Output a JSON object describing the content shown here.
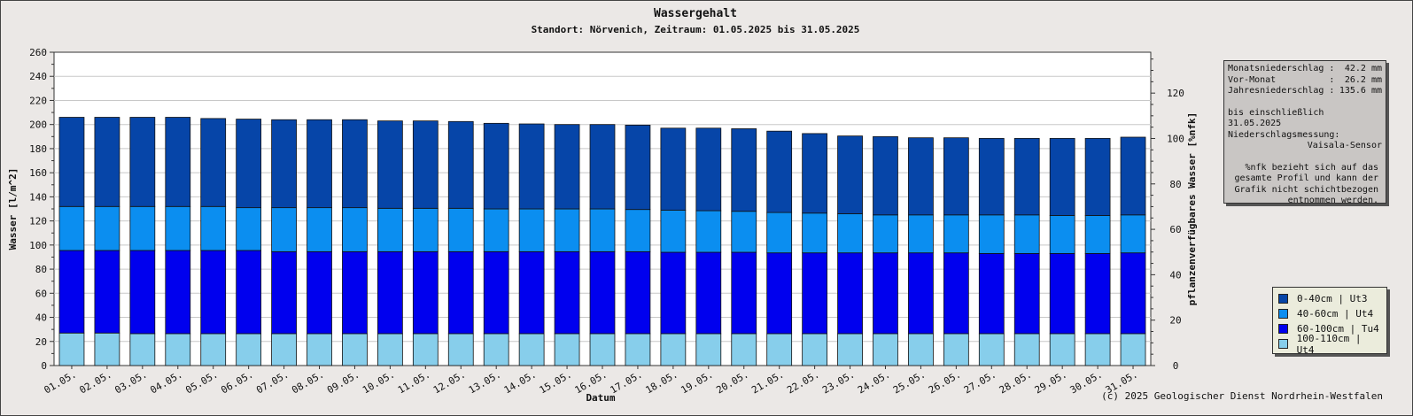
{
  "chart_data": {
    "type": "bar",
    "stacked": true,
    "title": "Wassergehalt",
    "subtitle": "Standort: Nörvenich, Zeitraum: 01.05.2025 bis 31.05.2025",
    "xlabel": "Datum",
    "ylabel": "Wasser [l/m^2]",
    "y2label": "pflanzenverfügbares Wasser [%nfk]",
    "ylim": [
      0,
      260
    ],
    "y2lim": [
      0,
      138
    ],
    "yticks": [
      0,
      20,
      40,
      60,
      80,
      100,
      120,
      140,
      160,
      180,
      200,
      220,
      240,
      260
    ],
    "y2ticks": [
      0,
      20,
      40,
      60,
      80,
      100,
      120
    ],
    "grid": true,
    "categories": [
      "01.05.",
      "02.05.",
      "03.05.",
      "04.05.",
      "05.05.",
      "06.05.",
      "07.05.",
      "08.05.",
      "09.05.",
      "10.05.",
      "11.05.",
      "12.05.",
      "13.05.",
      "14.05.",
      "15.05.",
      "16.05.",
      "17.05.",
      "18.05.",
      "19.05.",
      "20.05.",
      "21.05.",
      "22.05.",
      "23.05.",
      "24.05.",
      "25.05.",
      "26.05.",
      "27.05.",
      "28.05.",
      "29.05.",
      "30.05.",
      "31.05."
    ],
    "series": [
      {
        "name": "100-110cm | Ut4",
        "color": "#87ceeb",
        "values": [
          27,
          27,
          26.5,
          26.5,
          26.5,
          26.5,
          26.5,
          26.5,
          26.5,
          26.5,
          26.5,
          26.5,
          26.5,
          26.5,
          26.5,
          26.5,
          26.5,
          26.5,
          26.5,
          26.5,
          26.5,
          26.5,
          26.5,
          26.5,
          26.5,
          26.5,
          26.5,
          26.5,
          26.5,
          26.5,
          26.5
        ]
      },
      {
        "name": "60-100cm | Tu4",
        "color": "#0000ee",
        "values": [
          68.5,
          68.5,
          69,
          69,
          69,
          69,
          68,
          68,
          68,
          68,
          68,
          68,
          68,
          68,
          68,
          68,
          68,
          67.5,
          67.5,
          67.5,
          67,
          67,
          67,
          67,
          67,
          67,
          66.5,
          66.5,
          66.5,
          66.5,
          67
        ]
      },
      {
        "name": "40-60cm | Ut4",
        "color": "#0b8ef0",
        "values": [
          36.5,
          36.5,
          36.5,
          36.5,
          36.5,
          35.5,
          36.5,
          36.5,
          36.5,
          36,
          36,
          36,
          35.5,
          35.5,
          35.5,
          35.5,
          35,
          35,
          34.5,
          34,
          33.5,
          33,
          32.5,
          31.5,
          31.5,
          31.5,
          32,
          32,
          31.5,
          31.5,
          31.5
        ]
      },
      {
        "name": "0-40cm | Ut3",
        "color": "#0645a8",
        "values": [
          74,
          74,
          74,
          74,
          73,
          73.5,
          73,
          73,
          73,
          72.5,
          72.5,
          72,
          71,
          70.5,
          70,
          70,
          70,
          68,
          68.5,
          68.5,
          67.5,
          66,
          64.5,
          65,
          64,
          64,
          63.5,
          63.5,
          64,
          64,
          64.5
        ]
      }
    ],
    "legend_position": "bottom-right"
  },
  "info": {
    "monat_label": "Monatsniederschlag :",
    "monat_value": "42.2 mm",
    "vormonat_label": "Vor-Monat          :",
    "vormonat_value": "26.2 mm",
    "jahr_label": "Jahresniederschlag :",
    "jahr_value": "135.6 mm",
    "bis": "bis einschließlich 31.05.2025",
    "messung": "Niederschlagsmessung:",
    "sensor": "Vaisala-Sensor",
    "note": [
      "%nfk bezieht sich auf das",
      "gesamte Profil und kann der",
      "Grafik nicht schichtbezogen",
      "entnommen werden."
    ]
  },
  "copyright": "(c) 2025 Geologischer Dienst Nordrhein-Westfalen"
}
